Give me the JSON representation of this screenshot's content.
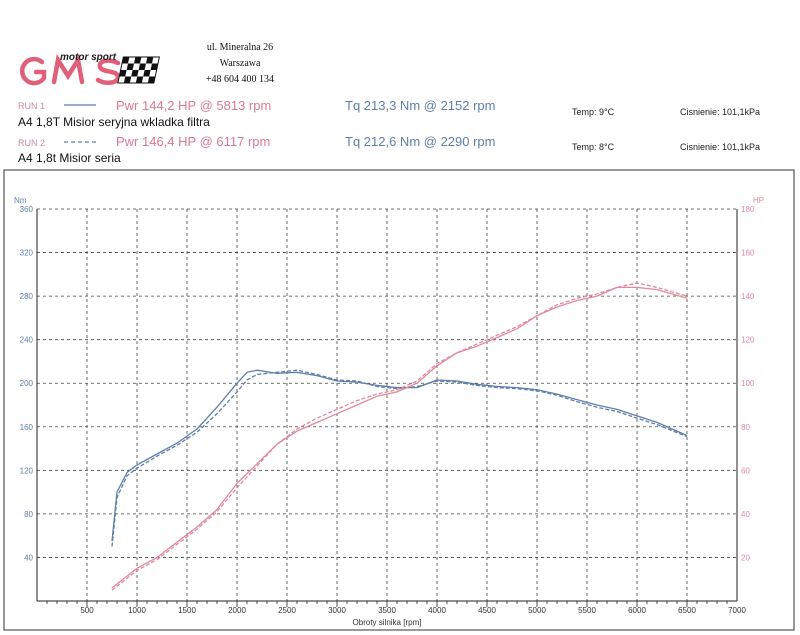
{
  "header": {
    "logo_sub": "motor sport",
    "logo_main": "GMS",
    "address": [
      "ul. Mineralna 26",
      "Warszawa",
      "+48 604 400 134"
    ],
    "brand_colors": {
      "logo": "#e0607a",
      "flag": "#111111"
    }
  },
  "runs": [
    {
      "run_label": "RUN 1",
      "pwr": "Pwr 144,2 HP @ 5813 rpm",
      "tq": "Tq 213,3 Nm @ 2152 rpm",
      "temp": "Temp: 9°C",
      "pressure": "Cisnienie: 101,1kPa",
      "description": "A4 1,8T Misior seryjna wkladka filtra",
      "line_style": "solid"
    },
    {
      "run_label": "RUN 2",
      "pwr": "Pwr 146,4 HP @ 6117 rpm",
      "tq": "Tq 212,6 Nm @ 2290 rpm",
      "temp": "Temp: 8°C",
      "pressure": "Cisnienie: 101,1kPa",
      "description": "A4 1,8t Misior seria",
      "line_style": "dashed"
    }
  ],
  "chart_data": {
    "type": "line",
    "xlabel": "Obroty silnika [rpm]",
    "ylabel_left": "Nm",
    "ylabel_right": "HP",
    "xlim": [
      0,
      7000
    ],
    "ylim_left": [
      0,
      360
    ],
    "ylim_right": [
      0,
      180
    ],
    "x_ticks": [
      500,
      1000,
      1500,
      2000,
      2500,
      3000,
      3500,
      4000,
      4500,
      5000,
      5500,
      6000,
      6500,
      7000
    ],
    "y_ticks_left": [
      40,
      80,
      120,
      160,
      200,
      240,
      280,
      320,
      360
    ],
    "y_ticks_right": [
      20,
      40,
      60,
      80,
      100,
      120,
      140,
      160,
      180
    ],
    "grid": true,
    "colors": {
      "torque": "#5f7fa8",
      "power": "#e08a9c",
      "grid": "#444444"
    },
    "series": [
      {
        "name": "Tq RUN 1",
        "axis": "left",
        "quantity": "torque",
        "style": "solid",
        "x": [
          750,
          800,
          900,
          1000,
          1200,
          1400,
          1600,
          1800,
          2000,
          2100,
          2200,
          2400,
          2600,
          2800,
          3000,
          3200,
          3400,
          3600,
          3800,
          4000,
          4200,
          4400,
          4600,
          4800,
          5000,
          5200,
          5400,
          5600,
          5800,
          6000,
          6200,
          6500
        ],
        "y": [
          55,
          100,
          118,
          125,
          135,
          145,
          158,
          178,
          200,
          210,
          212,
          209,
          210,
          207,
          202,
          201,
          198,
          196,
          196,
          203,
          202,
          199,
          197,
          196,
          194,
          190,
          185,
          180,
          176,
          170,
          164,
          152
        ]
      },
      {
        "name": "Tq RUN 2",
        "axis": "left",
        "quantity": "torque",
        "style": "dashed",
        "x": [
          750,
          800,
          900,
          1000,
          1200,
          1400,
          1600,
          1800,
          2000,
          2100,
          2200,
          2400,
          2600,
          2800,
          3000,
          3200,
          3400,
          3600,
          3800,
          4000,
          4200,
          4400,
          4600,
          4800,
          5000,
          5200,
          5400,
          5600,
          5800,
          6000,
          6200,
          6500
        ],
        "y": [
          50,
          95,
          115,
          122,
          133,
          143,
          155,
          172,
          192,
          203,
          208,
          210,
          212,
          208,
          203,
          202,
          197,
          195,
          197,
          202,
          201,
          198,
          196,
          195,
          193,
          189,
          183,
          178,
          174,
          168,
          162,
          151
        ]
      },
      {
        "name": "Pwr RUN 1",
        "axis": "right",
        "quantity": "power",
        "style": "solid",
        "x": [
          750,
          1000,
          1200,
          1400,
          1600,
          1800,
          2000,
          2200,
          2400,
          2600,
          2800,
          3000,
          3200,
          3400,
          3600,
          3800,
          4000,
          4200,
          4400,
          4600,
          4800,
          5000,
          5200,
          5400,
          5600,
          5800,
          6000,
          6200,
          6500
        ],
        "y": [
          6,
          15,
          20,
          27,
          34,
          42,
          54,
          63,
          72,
          78,
          82,
          86,
          90,
          94,
          96,
          100,
          108,
          114,
          117,
          121,
          125,
          131,
          135,
          138,
          140,
          144,
          144,
          143,
          139
        ],
        "peak_label": "Pwr 144,2 HP @ 5813 rpm"
      },
      {
        "name": "Pwr RUN 2",
        "axis": "right",
        "quantity": "power",
        "style": "dashed",
        "x": [
          750,
          1000,
          1200,
          1400,
          1600,
          1800,
          2000,
          2200,
          2400,
          2600,
          2800,
          3000,
          3200,
          3400,
          3600,
          3800,
          4000,
          4200,
          4400,
          4600,
          4800,
          5000,
          5200,
          5400,
          5600,
          5800,
          6000,
          6200,
          6500
        ],
        "y": [
          5,
          14,
          19,
          26,
          33,
          41,
          52,
          62,
          72,
          79,
          84,
          88,
          92,
          95,
          97,
          101,
          109,
          114,
          118,
          122,
          126,
          131,
          136,
          139,
          141,
          144,
          146,
          144,
          140
        ],
        "peak_label": "Pwr 146,4 HP @ 6117 rpm"
      }
    ]
  }
}
